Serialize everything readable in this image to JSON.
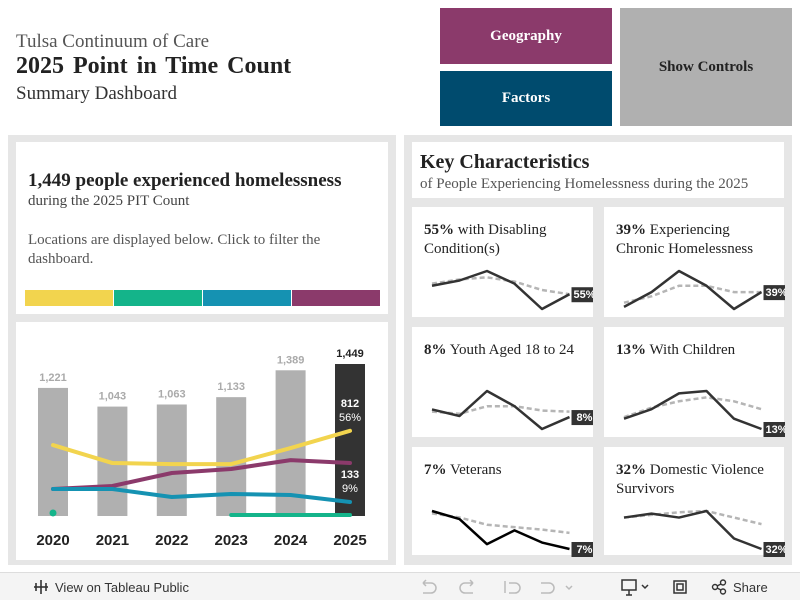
{
  "header": {
    "line1": "Tulsa Continuum of Care",
    "line2": "2025 Point in Time Count",
    "line3": "Summary Dashboard"
  },
  "buttons": {
    "geography": "Geography",
    "factors": "Factors",
    "show_controls": "Show Controls"
  },
  "summary": {
    "headline": "1,449 people experienced homelessness",
    "subline": "during the 2025 PIT Count",
    "note": "Locations are displayed below. Click to filter the dashboard.",
    "location_colors": [
      "#f2d44e",
      "#14b48a",
      "#1592b2",
      "#8b3a6b"
    ]
  },
  "trend": {
    "categories": [
      "2020",
      "2021",
      "2022",
      "2023",
      "2024",
      "2025"
    ],
    "totals": [
      1221,
      1043,
      1063,
      1133,
      1389,
      1449
    ],
    "total_labels": [
      "1,221",
      "1,043",
      "1,063",
      "1,133",
      "1,389",
      "1,449"
    ],
    "bar_color": "#b0b0b0",
    "highlight_color": "#333333",
    "series": [
      {
        "color": "#f2d44e",
        "values": [
          676,
          505,
          495,
          495,
          648,
          812
        ],
        "share": 56,
        "share_label": "56%"
      },
      {
        "color": "#8b3a6b",
        "values": [
          257,
          286,
          410,
          448,
          533,
          505
        ]
      },
      {
        "color": "#1592b2",
        "values": [
          257,
          257,
          181,
          210,
          200,
          133
        ],
        "share": 9,
        "share_label": "9%"
      },
      {
        "color": "#14b48a",
        "values": [
          29,
          null,
          null,
          10,
          10,
          10
        ]
      }
    ]
  },
  "characteristics": {
    "title": "Key Characteristics",
    "subtitle": "of People Experiencing Homelessness during the 2025",
    "cards": [
      {
        "value": 55,
        "value_label": "55%",
        "title": "with Disabling Condition(s)",
        "values": [
          59,
          61.5,
          66,
          60,
          48,
          55
        ],
        "trend": [
          60,
          62,
          63,
          61,
          57,
          55
        ]
      },
      {
        "value": 39,
        "value_label": "39%",
        "title": "Experiencing Chronic Homelessness",
        "values": [
          35.5,
          39,
          44,
          40.5,
          35,
          39
        ],
        "trend": [
          36.5,
          38,
          40.5,
          40.5,
          39,
          39
        ]
      },
      {
        "value": 8,
        "value_label": "8%",
        "title": "Youth Aged 18 to 24",
        "values": [
          9.4,
          8.2,
          12.8,
          10,
          5.8,
          8
        ],
        "trend": [
          9,
          8.6,
          10,
          10,
          9.2,
          9
        ]
      },
      {
        "value": 13,
        "value_label": "13%",
        "title": "With Children",
        "values": [
          16.9,
          20.5,
          26.5,
          27.4,
          16.9,
          13
        ],
        "trend": [
          17.5,
          21.1,
          23.5,
          25,
          23.5,
          20.5
        ]
      },
      {
        "value": 7,
        "value_label": "7%",
        "title": "Veterans",
        "values": [
          11.7,
          10.7,
          7.6,
          9.3,
          7.8,
          7
        ],
        "trend": [
          11.4,
          10.9,
          10,
          9.7,
          9.4,
          9
        ]
      },
      {
        "value": 32,
        "value_label": "32%",
        "title": "Domestic Violence Survivors",
        "values": [
          44,
          45.5,
          44,
          46.5,
          36,
          32
        ],
        "trend": [
          44,
          45,
          46,
          46.5,
          44,
          41.5
        ]
      }
    ]
  },
  "toolbar": {
    "view": "View on Tableau Public",
    "share": "Share"
  }
}
